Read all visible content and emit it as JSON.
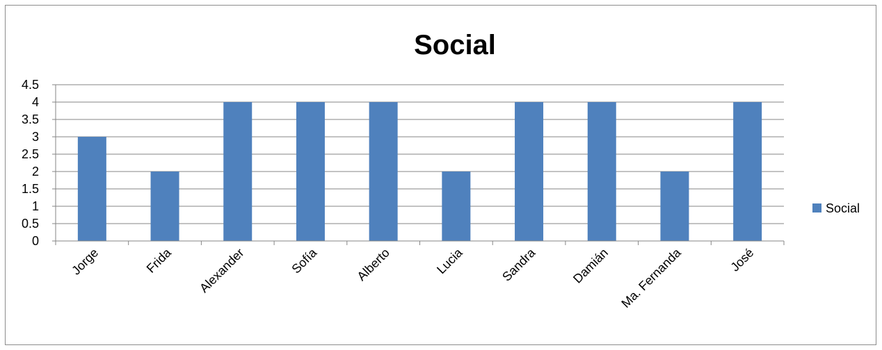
{
  "chart_data": {
    "type": "bar",
    "title": "Social",
    "categories": [
      "Jorge",
      "Frida",
      "Alexander",
      "Sofía",
      "Alberto",
      "Lucia",
      "Sandra",
      "Damián",
      "Ma. Fernanda",
      "José"
    ],
    "series": [
      {
        "name": "Social",
        "values": [
          3,
          2,
          4,
          4,
          4,
          2,
          4,
          4,
          2,
          4
        ],
        "color": "#4f81bd"
      }
    ],
    "ylim": [
      0,
      4.5
    ],
    "y_ticks": [
      "0",
      "0.5",
      "1",
      "1.5",
      "2",
      "2.5",
      "3",
      "3.5",
      "4",
      "4.5"
    ],
    "grid": true,
    "legend_position": "right",
    "gridline_color": "#868686"
  }
}
